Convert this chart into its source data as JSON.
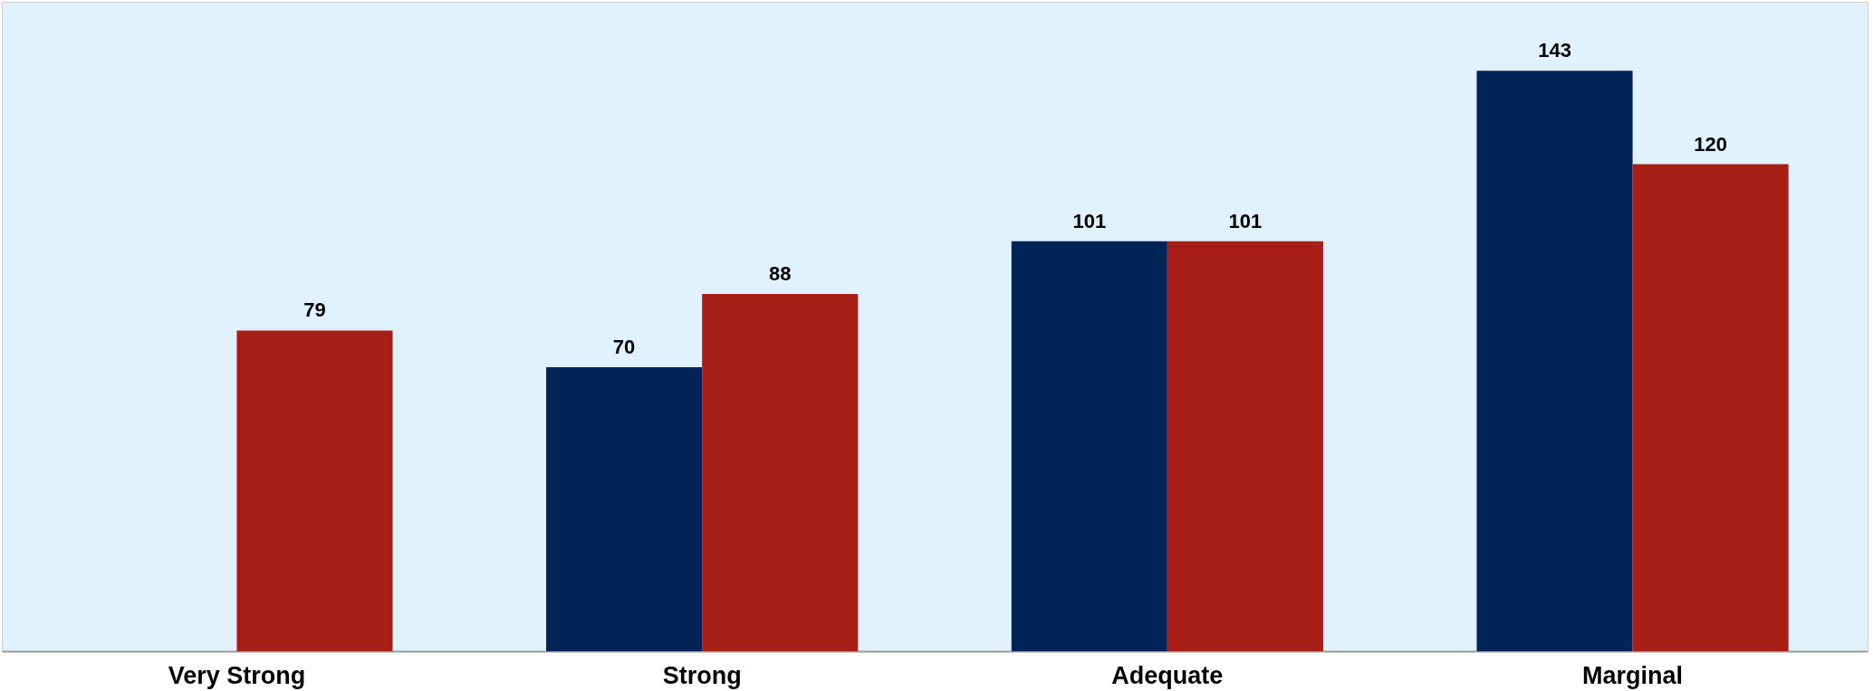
{
  "chart_data": {
    "type": "bar",
    "categories": [
      "Very Strong",
      "Strong",
      "Adequate",
      "Marginal"
    ],
    "series": [
      {
        "color": "#002458",
        "values": [
          null,
          70,
          101,
          143
        ]
      },
      {
        "color": "#a81f17",
        "values": [
          79,
          88,
          101,
          120
        ]
      }
    ],
    "data_labels": true,
    "grid": false,
    "legend": false
  }
}
